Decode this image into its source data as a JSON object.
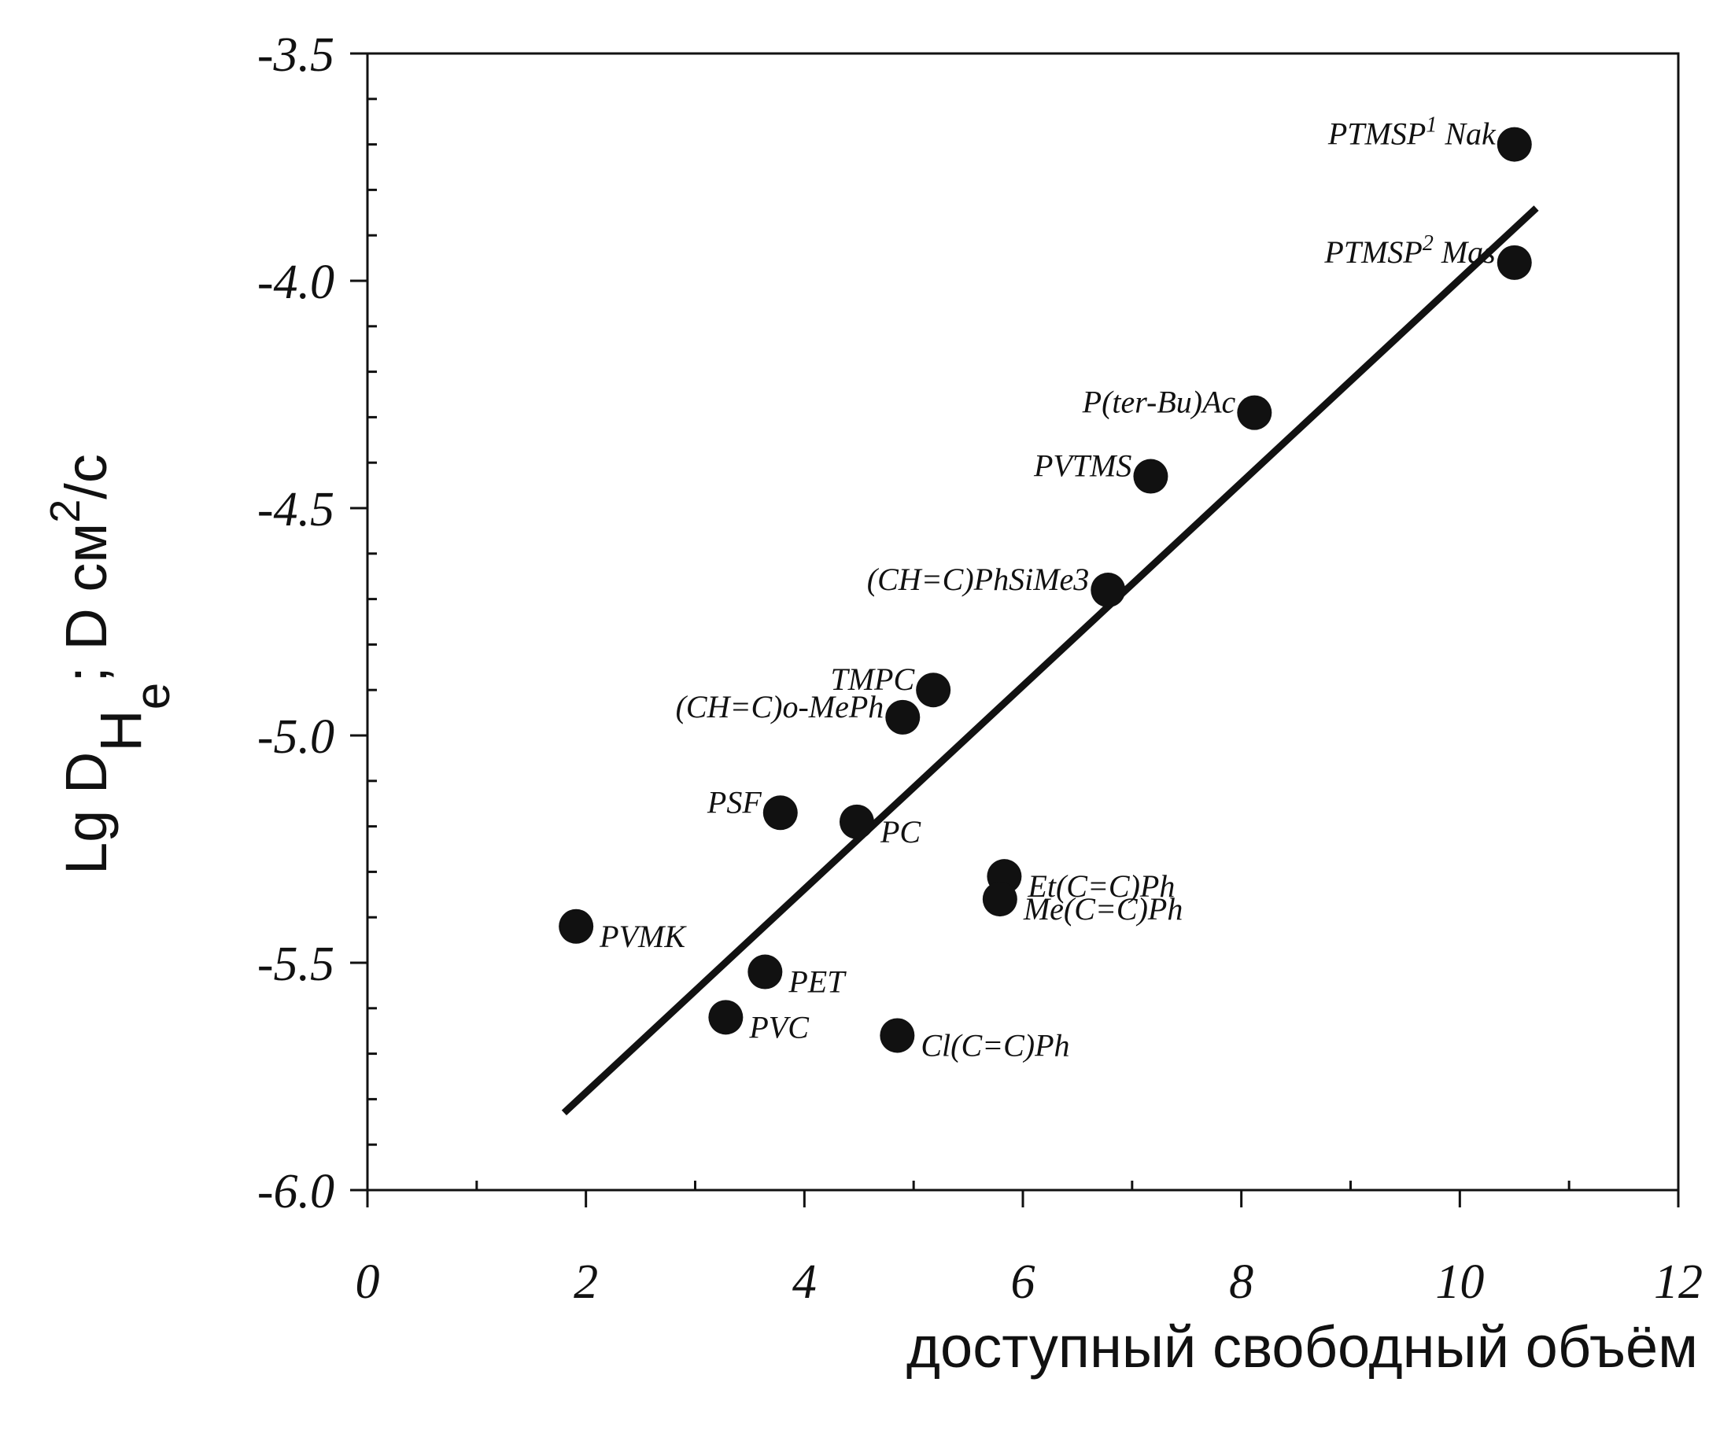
{
  "chart_data": {
    "type": "scatter",
    "xlabel": "доступный свободный объём",
    "ylabel": {
      "parts": [
        {
          "text": "Lg D",
          "kind": "normal"
        },
        {
          "text": "H",
          "kind": "sub"
        },
        {
          "text": "e",
          "kind": "subsub"
        },
        {
          "text": "; D см",
          "kind": "normal"
        },
        {
          "text": "2",
          "kind": "sup"
        },
        {
          "text": "/c",
          "kind": "normal"
        }
      ]
    },
    "xlim": [
      0,
      12
    ],
    "ylim": [
      -6.0,
      -3.5
    ],
    "x_ticks": [
      {
        "value": 0,
        "label": "0"
      },
      {
        "value": 2,
        "label": "2"
      },
      {
        "value": 4,
        "label": "4"
      },
      {
        "value": 6,
        "label": "6"
      },
      {
        "value": 8,
        "label": "8"
      },
      {
        "value": 10,
        "label": "10"
      },
      {
        "value": 12,
        "label": "12"
      }
    ],
    "y_ticks": [
      {
        "value": -3.5,
        "label": "-3.5"
      },
      {
        "value": -4.0,
        "label": "-4.0"
      },
      {
        "value": -4.5,
        "label": "-4.5"
      },
      {
        "value": -5.0,
        "label": "-5.0"
      },
      {
        "value": -5.5,
        "label": "-5.5"
      },
      {
        "value": -6.0,
        "label": "-6.0"
      }
    ],
    "grid": false,
    "points": [
      {
        "label": "PTMSP",
        "sup": "1",
        "suffix": " Nak",
        "x": 10.5,
        "y": -3.7,
        "label_side": "left"
      },
      {
        "label": "PTMSP",
        "sup": "2",
        "suffix": " Mas",
        "x": 10.5,
        "y": -3.96,
        "label_side": "left"
      },
      {
        "label": "P(ter-Bu)Ac",
        "x": 8.12,
        "y": -4.29,
        "label_side": "left"
      },
      {
        "label": "PVTMS",
        "x": 7.17,
        "y": -4.43,
        "label_side": "left"
      },
      {
        "label": "(CH=C)PhSiMe3",
        "x": 6.78,
        "y": -4.68,
        "label_side": "left"
      },
      {
        "label": "TMPC",
        "x": 5.18,
        "y": -4.9,
        "label_side": "left"
      },
      {
        "label": "(CH=C)o-MePh",
        "x": 4.9,
        "y": -4.96,
        "label_side": "left"
      },
      {
        "label": "PSF",
        "x": 3.78,
        "y": -5.17,
        "label_side": "left"
      },
      {
        "label": "PC",
        "x": 4.48,
        "y": -5.19,
        "label_side": "right"
      },
      {
        "label": "Et(C=C)Ph",
        "x": 5.83,
        "y": -5.31,
        "label_side": "right"
      },
      {
        "label": "Me(C=C)Ph",
        "x": 5.79,
        "y": -5.36,
        "label_side": "right"
      },
      {
        "label": "PVMK",
        "x": 1.91,
        "y": -5.42,
        "label_side": "right"
      },
      {
        "label": "PET",
        "x": 3.64,
        "y": -5.52,
        "label_side": "right"
      },
      {
        "label": "PVC",
        "x": 3.28,
        "y": -5.62,
        "label_side": "right"
      },
      {
        "label": "Cl(C=C)Ph",
        "x": 4.85,
        "y": -5.66,
        "label_side": "right"
      }
    ],
    "fit_line": {
      "x": [
        1.8,
        10.7
      ],
      "y": [
        -5.83,
        -3.84
      ]
    }
  }
}
